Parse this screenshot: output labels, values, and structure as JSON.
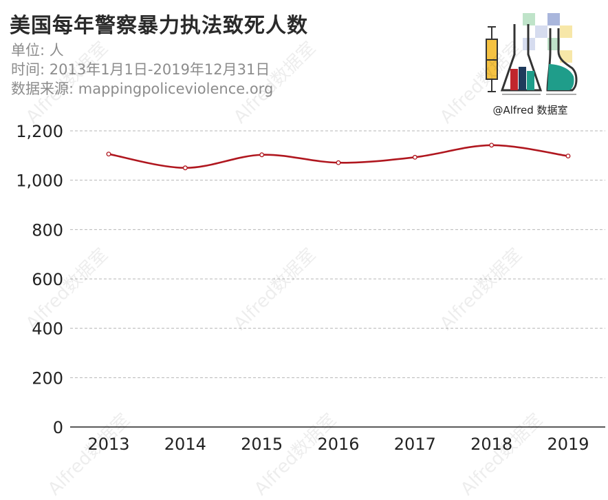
{
  "header": {
    "title": "美国每年警察暴力执法致死人数",
    "unit": "单位: 人",
    "time_range": "时间: 2013年1月1日-2019年12月31日",
    "source": "数据来源: mappingpoliceviolence.org"
  },
  "logo": {
    "caption": "@Alfred 数据室",
    "icon": "flask-chart-icon",
    "colors": [
      "#f5c242",
      "#c0262d",
      "#1f3b5c",
      "#1f9d8a",
      "#a9b6dc",
      "#f7e7a8",
      "#bfe3c9"
    ]
  },
  "watermark": {
    "text": "Alfred数据室"
  },
  "chart_data": {
    "type": "line",
    "categories": [
      "2013",
      "2014",
      "2015",
      "2016",
      "2017",
      "2018",
      "2019"
    ],
    "series": [
      {
        "values": [
          1106,
          1050,
          1103,
          1071,
          1093,
          1142,
          1098
        ]
      }
    ],
    "ylim": [
      0,
      1200
    ],
    "yticks": [
      0,
      200,
      400,
      600,
      800,
      1000,
      1200
    ],
    "ytick_labels": [
      "0",
      "200",
      "400",
      "600",
      "800",
      "1,000",
      "1,200"
    ],
    "grid": true,
    "smooth": true,
    "colors": {
      "line": "#b0171f",
      "marker_fill": "#ffffff",
      "grid": "#b5b5b5",
      "axis": "#222222"
    }
  }
}
